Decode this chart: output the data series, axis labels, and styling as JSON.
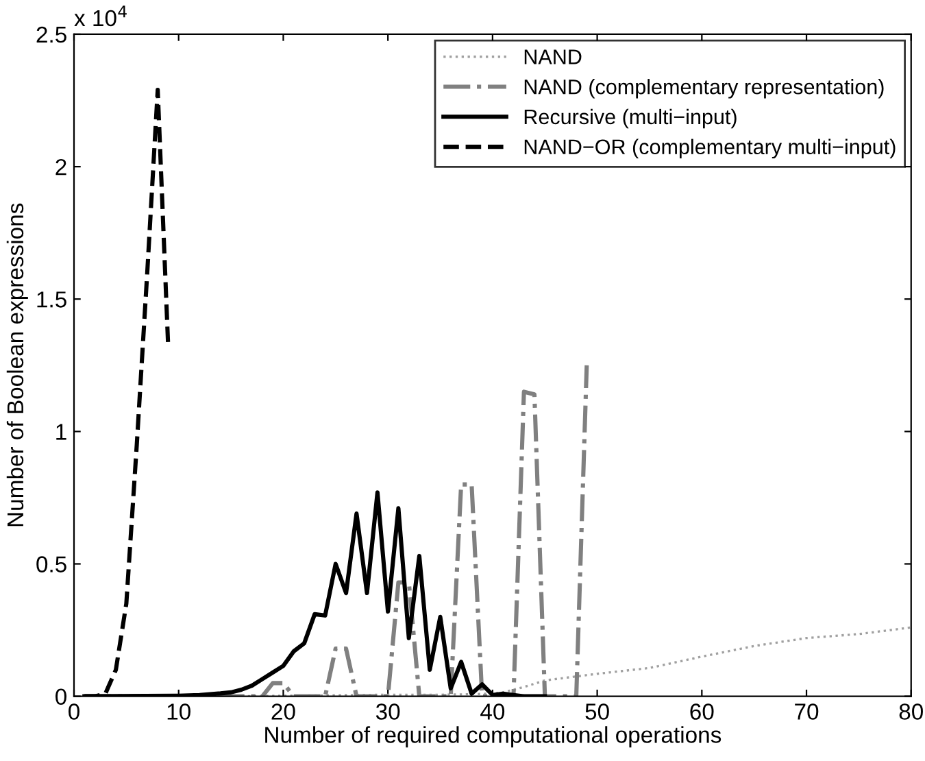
{
  "chart_data": {
    "type": "line",
    "xlabel": "Number of required computational operations",
    "ylabel": "Number of Boolean expressions",
    "annotations": [
      "x 10$^{4}$"
    ],
    "xlim": [
      0,
      80
    ],
    "xticks": [
      0,
      10,
      20,
      30,
      40,
      50,
      60,
      70,
      80
    ],
    "ylim": [
      0,
      2.5
    ],
    "yticks": [
      0,
      0.5,
      1,
      1.5,
      2,
      2.5
    ],
    "grid": false,
    "legend": "top right",
    "series": [
      {
        "name": "NAND",
        "color": "#a0a0a0",
        "line_style": "dotted",
        "x": [
          1,
          5,
          10,
          15,
          20,
          25,
          30,
          35,
          38,
          40,
          41,
          43,
          45,
          48,
          50,
          55,
          60,
          65,
          70,
          75,
          80
        ],
        "values": [
          0,
          0,
          0,
          0,
          0.002,
          0.004,
          0.006,
          0.006,
          0.008,
          0.01,
          0.015,
          0.035,
          0.06,
          0.075,
          0.085,
          0.107,
          0.15,
          0.19,
          0.22,
          0.235,
          0.26
        ]
      },
      {
        "name": "NAND (complementary representation)",
        "color": "#808080",
        "line_style": "dashdot",
        "x": [
          1,
          18,
          19,
          20,
          21,
          24,
          25,
          26,
          27,
          30,
          31,
          32,
          33,
          36,
          37,
          38,
          39,
          42,
          43,
          44,
          45,
          48,
          49
        ],
        "values": [
          0,
          0,
          0.05,
          0.05,
          0,
          0,
          0.18,
          0.18,
          0,
          0,
          0.43,
          0.43,
          0,
          0,
          0.8,
          0.8,
          0,
          0,
          1.15,
          1.14,
          0,
          0,
          1.25
        ]
      },
      {
        "name": "Recursive (multi−input)",
        "color": "#000000",
        "line_style": "solid",
        "x": [
          1,
          10,
          12,
          13,
          14,
          15,
          16,
          17,
          18,
          19,
          20,
          21,
          22,
          23,
          24,
          25,
          26,
          27,
          28,
          29,
          30,
          31,
          32,
          33,
          34,
          35,
          36,
          37,
          38,
          39,
          40,
          41,
          42,
          43,
          44,
          45
        ],
        "values": [
          0,
          0.002,
          0.005,
          0.008,
          0.011,
          0.015,
          0.025,
          0.04,
          0.065,
          0.09,
          0.115,
          0.17,
          0.2,
          0.31,
          0.305,
          0.5,
          0.39,
          0.69,
          0.39,
          0.77,
          0.32,
          0.71,
          0.22,
          0.53,
          0.1,
          0.3,
          0.03,
          0.13,
          0.01,
          0.045,
          0.005,
          0.01,
          0.005,
          0,
          0,
          0
        ]
      },
      {
        "name": "NAND−OR (complementary multi−input)",
        "color": "#000000",
        "line_style": "dashed",
        "x": [
          1,
          2,
          3,
          4,
          5,
          6,
          7,
          8,
          9
        ],
        "values": [
          0,
          0,
          0.01,
          0.1,
          0.35,
          0.95,
          1.6,
          2.29,
          1.32
        ]
      }
    ]
  }
}
